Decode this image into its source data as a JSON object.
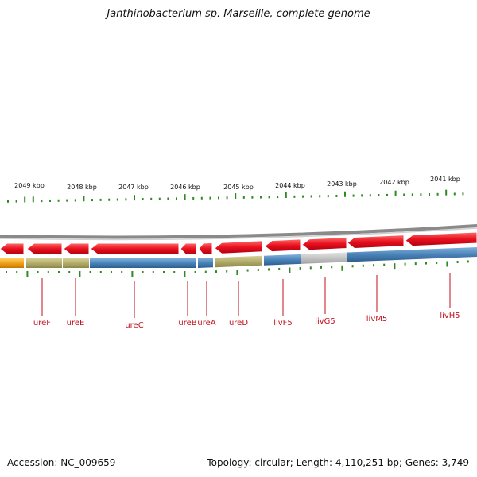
{
  "title": "Janthinobacterium sp. Marseille, complete genome",
  "scale": {
    "unit": "kbp",
    "ticks": [
      {
        "label": "2049 kbp"
      },
      {
        "label": "2048 kbp"
      },
      {
        "label": "2047 kbp"
      },
      {
        "label": "2046 kbp"
      },
      {
        "label": "2045 kbp"
      },
      {
        "label": "2044 kbp"
      },
      {
        "label": "2043 kbp"
      },
      {
        "label": "2042 kbp"
      },
      {
        "label": "2041 kbp"
      }
    ]
  },
  "genes": [
    {
      "name": "ureF"
    },
    {
      "name": "ureE"
    },
    {
      "name": "ureC"
    },
    {
      "name": "ureB"
    },
    {
      "name": "ureA"
    },
    {
      "name": "ureD"
    },
    {
      "name": "livF5"
    },
    {
      "name": "livG5"
    },
    {
      "name": "livM5"
    },
    {
      "name": "livH5"
    }
  ],
  "colors": {
    "gene": "#e8101e",
    "label": "#c0101e",
    "tick": "#2e8b22",
    "backbone": "#8a8a8a",
    "track_blue": "#4a83b8",
    "track_olive": "#b3ad6a",
    "track_grey": "#c4c4c4",
    "track_orange": "#f0a018"
  },
  "footer": {
    "accession": "Accession: NC_009659",
    "summary": "Topology: circular; Length: 4,110,251 bp; Genes: 3,749"
  }
}
